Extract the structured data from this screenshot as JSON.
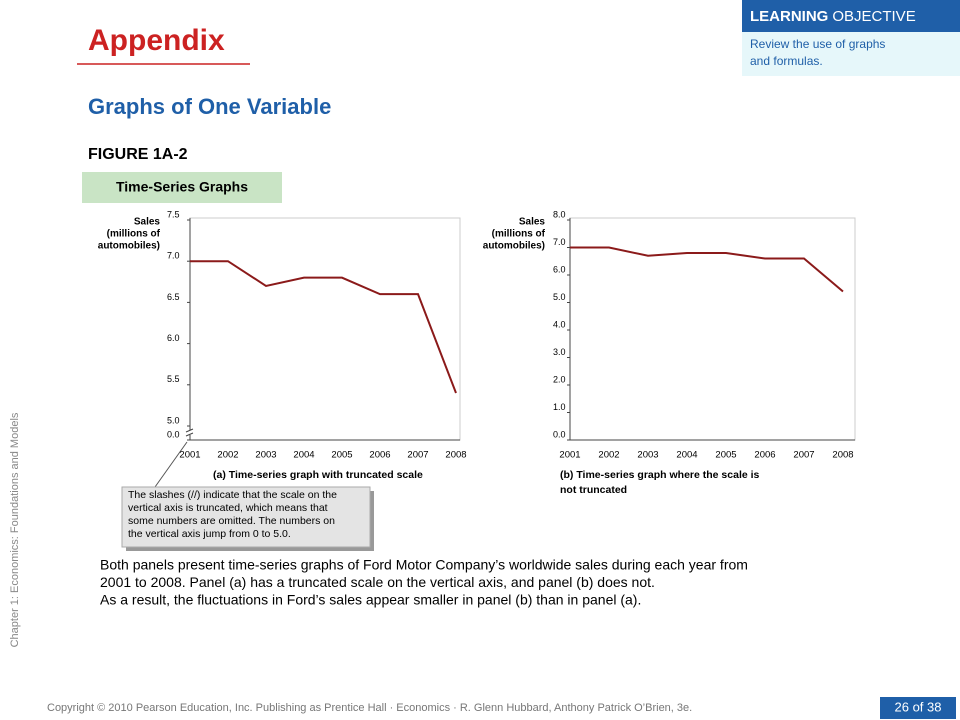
{
  "header": {
    "title": "Appendix",
    "section": "Graphs of One Variable",
    "figure": "FIGURE 1A-2",
    "figure_title": "Time-Series Graphs"
  },
  "learning_objective": {
    "label_bold": "LEARNING",
    "label_rest": "OBJECTIVE",
    "text": [
      "Review the use of graphs",
      "and formulas."
    ]
  },
  "chart_data": [
    {
      "type": "line",
      "ylabel": [
        "Sales",
        "(millions of",
        "automobiles)"
      ],
      "caption": [
        "(a) Time-series graph with truncated scale"
      ],
      "categories": [
        "2001",
        "2002",
        "2003",
        "2004",
        "2005",
        "2006",
        "2007",
        "2008"
      ],
      "values": [
        7.0,
        7.0,
        6.7,
        6.8,
        6.8,
        6.6,
        6.6,
        5.4
      ],
      "color": "#8b1a1a",
      "ylim": [
        5,
        7.5
      ],
      "yticks": [
        {
          "value": 0,
          "label": "0.0"
        },
        {
          "value": 5,
          "label": "5.0"
        },
        5.5,
        {
          "value": 6,
          "label": "6.0"
        },
        6.5,
        {
          "value": 7,
          "label": "7.0"
        },
        7.5
      ],
      "axis_break": true
    },
    {
      "type": "line",
      "ylabel": [
        "Sales",
        "(millions of",
        "automobiles)"
      ],
      "caption": [
        "(b) Time-series graph where the scale is",
        "not truncated"
      ],
      "categories": [
        "2001",
        "2002",
        "2003",
        "2004",
        "2005",
        "2006",
        "2007",
        "2008"
      ],
      "values": [
        7.0,
        7.0,
        6.7,
        6.8,
        6.8,
        6.6,
        6.6,
        5.4
      ],
      "color": "#8b1a1a",
      "ylim": [
        0,
        8
      ],
      "yticks": [
        {
          "value": 0,
          "label": "0.0"
        },
        {
          "value": 1,
          "label": "1.0"
        },
        {
          "value": 2,
          "label": "2.0"
        },
        {
          "value": 3,
          "label": "3.0"
        },
        {
          "value": 4,
          "label": "4.0"
        },
        {
          "value": 5,
          "label": "5.0"
        },
        {
          "value": 6,
          "label": "6.0"
        },
        {
          "value": 7,
          "label": "7.0"
        },
        {
          "value": 8,
          "label": "8.0"
        }
      ],
      "axis_break": false
    }
  ],
  "callout": [
    "The slashes (//) indicate that the scale on the",
    "vertical axis is truncated, which means that",
    "some numbers are omitted.  The numbers on",
    "the vertical axis jump from 0 to 5.0."
  ],
  "body": [
    "Both panels present time-series graphs of Ford Motor Company’s worldwide sales during each year from",
    "2001 to 2008. Panel (a) has a truncated scale on the vertical axis, and panel (b) does not.",
    "As a result, the fluctuations in Ford’s sales appear smaller in panel (b) than in panel (a)."
  ],
  "side_text": "Chapter 1: Economics:  Foundations and Models",
  "footer": "Copyright © 2010 Pearson Education, Inc. Publishing as Prentice Hall · Economics · R. Glenn Hubbard, Anthony Patrick O’Brien, 3e.",
  "page": "26 of 38"
}
